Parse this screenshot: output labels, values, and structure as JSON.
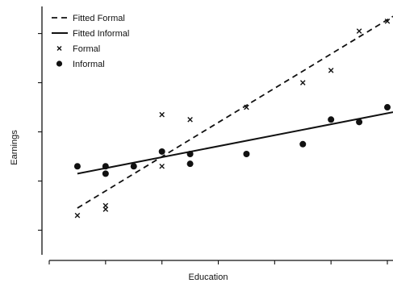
{
  "chart_data": {
    "type": "scatter",
    "xlabel": "Education",
    "ylabel": "Earnings",
    "xlim": [
      0,
      12.2
    ],
    "ylim": [
      0,
      10.2
    ],
    "grid": false,
    "legend_position": "top-left",
    "legend": [
      {
        "label": "Fitted Formal",
        "style": "dashed-line"
      },
      {
        "label": "Fitted Informal",
        "style": "solid-line"
      },
      {
        "label": "Formal",
        "style": "x-marker"
      },
      {
        "label": "Informal",
        "style": "dot-marker"
      }
    ],
    "series": [
      {
        "name": "Formal",
        "marker": "x",
        "points": [
          {
            "x": 1,
            "y": 1.6
          },
          {
            "x": 2,
            "y": 2.0
          },
          {
            "x": 2,
            "y": 1.85
          },
          {
            "x": 4,
            "y": 5.7
          },
          {
            "x": 4,
            "y": 3.6
          },
          {
            "x": 5,
            "y": 5.5
          },
          {
            "x": 7,
            "y": 6.0
          },
          {
            "x": 9,
            "y": 7.0
          },
          {
            "x": 10,
            "y": 7.5
          },
          {
            "x": 11,
            "y": 9.1
          },
          {
            "x": 12,
            "y": 9.5
          }
        ]
      },
      {
        "name": "Informal",
        "marker": "dot",
        "points": [
          {
            "x": 1,
            "y": 3.6
          },
          {
            "x": 2,
            "y": 3.6
          },
          {
            "x": 2,
            "y": 3.3
          },
          {
            "x": 3,
            "y": 3.6
          },
          {
            "x": 4,
            "y": 4.2
          },
          {
            "x": 5,
            "y": 4.1
          },
          {
            "x": 5,
            "y": 3.7
          },
          {
            "x": 7,
            "y": 4.1
          },
          {
            "x": 9,
            "y": 4.5
          },
          {
            "x": 10,
            "y": 5.5
          },
          {
            "x": 11,
            "y": 5.4
          },
          {
            "x": 12,
            "y": 6.0
          }
        ]
      },
      {
        "name": "Fitted Formal",
        "style": "dashed-line",
        "points": [
          {
            "x": 1,
            "y": 1.9
          },
          {
            "x": 12.2,
            "y": 9.7
          }
        ]
      },
      {
        "name": "Fitted Informal",
        "style": "solid-line",
        "points": [
          {
            "x": 1,
            "y": 3.3
          },
          {
            "x": 12.2,
            "y": 5.8
          }
        ]
      }
    ]
  }
}
